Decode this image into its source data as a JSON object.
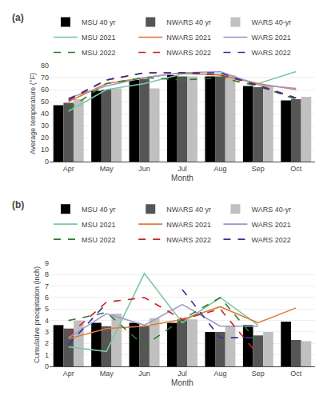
{
  "chart_data": [
    {
      "type": "bar",
      "title": "(a)",
      "xlabel": "Month",
      "ylabel": "Average temperature (°F)",
      "categories": [
        "Apr",
        "May",
        "Jun",
        "Jul",
        "Aug",
        "Sep",
        "Oct"
      ],
      "series": [
        {
          "name": "MSU 40 yr",
          "type": "bar",
          "color": "#000000",
          "values": [
            47,
            59,
            68,
            72,
            71,
            63,
            51
          ]
        },
        {
          "name": "NWARS 40 yr",
          "type": "bar",
          "color": "#555555",
          "values": [
            49,
            60,
            69,
            71,
            71,
            62,
            52
          ]
        },
        {
          "name": "WARS 40-yr",
          "type": "bar",
          "color": "#c0c0c0",
          "values": [
            52,
            61,
            61,
            71,
            72,
            63,
            54
          ]
        },
        {
          "name": "MSU 2021",
          "type": "line",
          "line_style": "solid",
          "color": "#7ec8a0",
          "values": [
            42,
            60,
            65,
            73,
            73,
            65,
            75
          ]
        },
        {
          "name": "NWARS 2021",
          "type": "line",
          "line_style": "solid",
          "color": "#e07b39",
          "values": [
            50,
            65,
            70,
            74,
            72,
            65,
            60
          ]
        },
        {
          "name": "WARS 2021",
          "type": "line",
          "line_style": "solid",
          "color": "#9999cc",
          "values": [
            53,
            63,
            70,
            74,
            75,
            64,
            61
          ]
        },
        {
          "name": "MSU 2022",
          "type": "line",
          "line_style": "dashed",
          "color": "#2d7a2d",
          "values": [
            44,
            65,
            70,
            68,
            70,
            63,
            52
          ]
        },
        {
          "name": "NWARS 2022",
          "type": "line",
          "line_style": "dashed",
          "color": "#cc2222",
          "values": [
            51,
            68,
            74,
            74,
            72,
            64,
            53
          ]
        },
        {
          "name": "WARS 2022",
          "type": "line",
          "line_style": "dashed",
          "color": "#333399",
          "values": [
            52,
            68,
            74,
            74,
            74,
            63,
            53
          ]
        }
      ],
      "ylim": [
        0,
        80
      ],
      "yticks": [
        0,
        10,
        20,
        30,
        40,
        50,
        60,
        70,
        80
      ],
      "grid": true,
      "legend": "top"
    },
    {
      "type": "bar",
      "title": "(b)",
      "xlabel": "Month",
      "ylabel": "Cumulative precipitation (inch)",
      "categories": [
        "Apr",
        "May",
        "Jun",
        "Jul",
        "Aug",
        "Sep",
        "Oct"
      ],
      "series": [
        {
          "name": "MSU 40 yr",
          "type": "bar",
          "color": "#000000",
          "values": [
            3.6,
            3.8,
            3.8,
            3.8,
            3.0,
            3.6,
            3.9
          ]
        },
        {
          "name": "NWARS 40 yr",
          "type": "bar",
          "color": "#555555",
          "values": [
            3.3,
            3.5,
            3.5,
            4.1,
            3.0,
            2.7,
            2.3
          ]
        },
        {
          "name": "WARS 40-yr",
          "type": "bar",
          "color": "#c0c0c0",
          "values": [
            4.0,
            4.6,
            4.2,
            4.1,
            3.5,
            3.0,
            2.2
          ]
        },
        {
          "name": "MSU 2021",
          "type": "line",
          "line_style": "solid",
          "color": "#7ec8a0",
          "values": [
            1.7,
            1.3,
            8.1,
            3.8,
            6.0,
            3.6,
            null
          ]
        },
        {
          "name": "NWARS 2021",
          "type": "line",
          "line_style": "solid",
          "color": "#e07b39",
          "values": [
            2.4,
            3.3,
            3.5,
            4.1,
            5.2,
            3.8,
            5.1
          ]
        },
        {
          "name": "WARS 2021",
          "type": "line",
          "line_style": "solid",
          "color": "#9999cc",
          "values": [
            2.5,
            4.6,
            3.6,
            5.4,
            3.5,
            3.5,
            null
          ]
        },
        {
          "name": "MSU 2022",
          "type": "line",
          "line_style": "dashed",
          "color": "#2d7a2d",
          "values": [
            4.0,
            4.7,
            1.8,
            4.1,
            6.0,
            2.1,
            null
          ]
        },
        {
          "name": "NWARS 2022",
          "type": "line",
          "line_style": "dashed",
          "color": "#cc2222",
          "values": [
            2.7,
            5.6,
            6.0,
            4.1,
            5.0,
            1.0,
            null
          ]
        },
        {
          "name": "WARS 2022",
          "type": "line",
          "line_style": "dashed",
          "color": "#333399",
          "values": [
            1.9,
            5.5,
            null,
            6.7,
            2.5,
            2.5,
            null
          ]
        }
      ],
      "ylim": [
        0,
        9
      ],
      "yticks": [
        0,
        1,
        2,
        3,
        4,
        5,
        6,
        7,
        8,
        9
      ],
      "grid": true,
      "legend": "top"
    }
  ]
}
